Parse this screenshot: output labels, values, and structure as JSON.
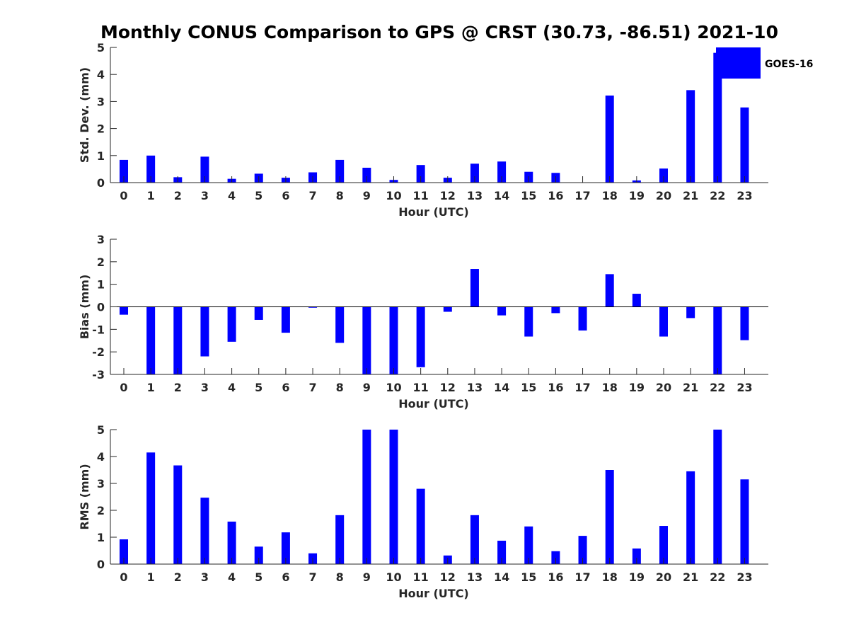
{
  "title": "Monthly CONUS Comparison to GPS @ CRST (30.73, -86.51) 2021-10",
  "legend": {
    "label": "GOES-16",
    "color": "#0000ff"
  },
  "chart_data": [
    {
      "type": "bar",
      "xlabel": "Hour (UTC)",
      "ylabel": "Std. Dev. (mm)",
      "ylim": [
        0,
        5
      ],
      "yticks": [
        0,
        1,
        2,
        3,
        4,
        5
      ],
      "categories": [
        "0",
        "1",
        "2",
        "3",
        "4",
        "5",
        "6",
        "7",
        "8",
        "9",
        "10",
        "11",
        "12",
        "13",
        "14",
        "15",
        "16",
        "17",
        "18",
        "19",
        "20",
        "21",
        "22",
        "23"
      ],
      "series": [
        {
          "name": "GOES-16",
          "values": [
            0.84,
            1.0,
            0.2,
            0.96,
            0.14,
            0.33,
            0.18,
            0.38,
            0.84,
            0.55,
            0.1,
            0.65,
            0.18,
            0.7,
            0.78,
            0.4,
            0.36,
            0.0,
            3.22,
            0.08,
            0.52,
            3.42,
            4.8,
            2.78
          ]
        }
      ]
    },
    {
      "type": "bar",
      "xlabel": "Hour (UTC)",
      "ylabel": "Bias (mm)",
      "ylim": [
        -3,
        3
      ],
      "yticks": [
        -3,
        -2,
        -1,
        0,
        1,
        2,
        3
      ],
      "categories": [
        "0",
        "1",
        "2",
        "3",
        "4",
        "5",
        "6",
        "7",
        "8",
        "9",
        "10",
        "11",
        "12",
        "13",
        "14",
        "15",
        "16",
        "17",
        "18",
        "19",
        "20",
        "21",
        "22",
        "23"
      ],
      "series": [
        {
          "name": "GOES-16",
          "values": [
            -0.35,
            -3.0,
            -3.0,
            -2.2,
            -1.55,
            -0.58,
            -1.15,
            -0.04,
            -1.6,
            -3.0,
            -3.0,
            -2.68,
            -0.22,
            1.68,
            -0.38,
            -1.32,
            -0.28,
            -1.05,
            1.45,
            0.58,
            -1.32,
            -0.5,
            -3.0,
            -1.48
          ]
        }
      ]
    },
    {
      "type": "bar",
      "xlabel": "Hour (UTC)",
      "ylabel": "RMS (mm)",
      "ylim": [
        0,
        5
      ],
      "yticks": [
        0,
        1,
        2,
        3,
        4,
        5
      ],
      "categories": [
        "0",
        "1",
        "2",
        "3",
        "4",
        "5",
        "6",
        "7",
        "8",
        "9",
        "10",
        "11",
        "12",
        "13",
        "14",
        "15",
        "16",
        "17",
        "18",
        "19",
        "20",
        "21",
        "22",
        "23"
      ],
      "series": [
        {
          "name": "GOES-16",
          "values": [
            0.92,
            4.15,
            3.67,
            2.47,
            1.58,
            0.65,
            1.18,
            0.4,
            1.82,
            5.0,
            5.0,
            2.8,
            0.32,
            1.82,
            0.87,
            1.4,
            0.48,
            1.05,
            3.5,
            0.58,
            1.42,
            3.45,
            5.0,
            3.15
          ]
        }
      ]
    }
  ]
}
